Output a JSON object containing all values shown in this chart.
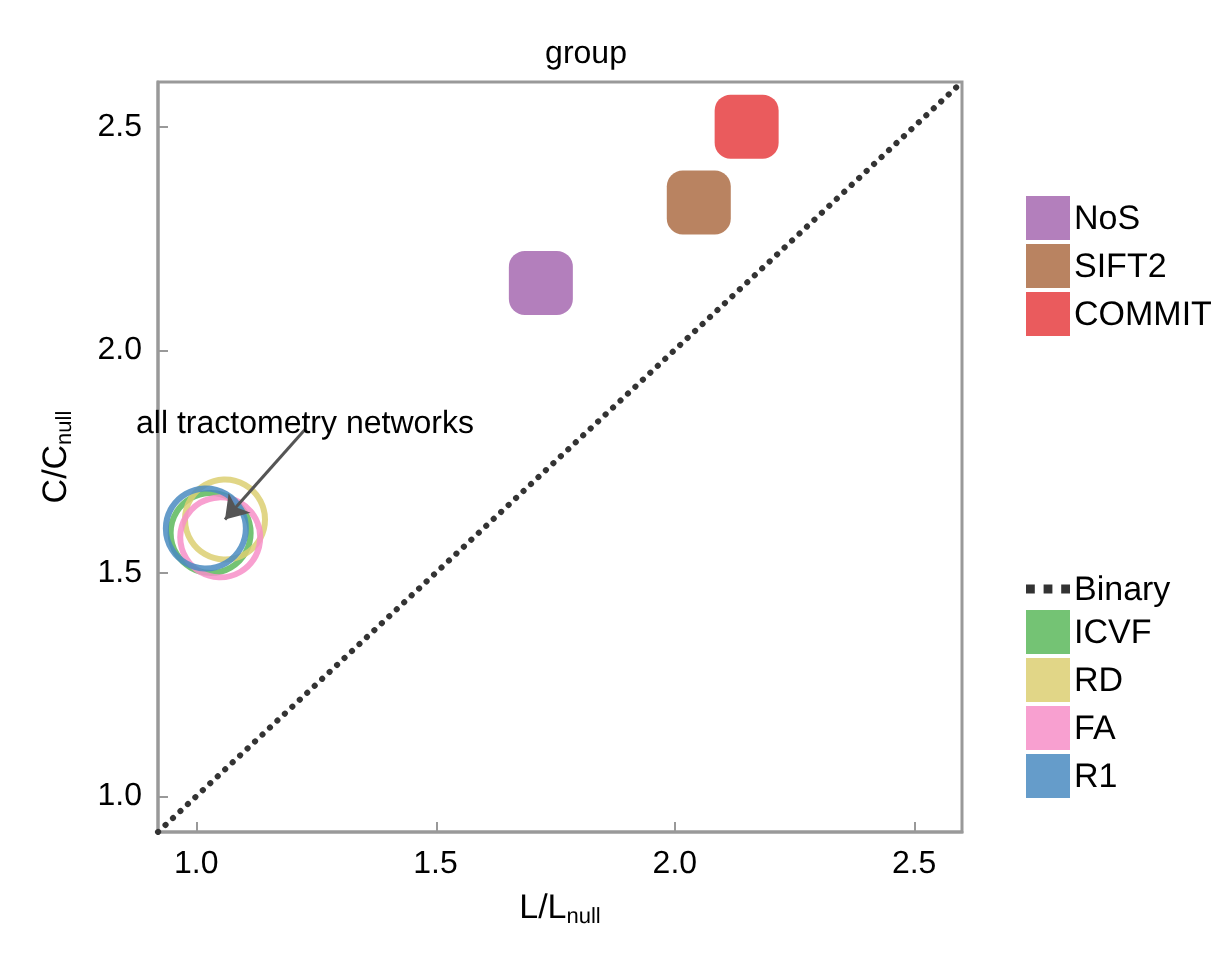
{
  "chart_data": {
    "type": "scatter",
    "title": "group",
    "xlabel": "L/L$_{null}$",
    "ylabel": "C/C$_{null}$",
    "xlim": [
      0.92,
      2.6
    ],
    "ylim": [
      0.92,
      2.6
    ],
    "xticks": [
      {
        "value": 1,
        "label": "1.0"
      },
      1.5,
      {
        "value": 2,
        "label": "2.0"
      },
      2.5
    ],
    "yticks": [
      {
        "value": 1,
        "label": "1.0"
      },
      1.5,
      {
        "value": 2,
        "label": "2.0"
      },
      2.5
    ],
    "grid": false,
    "legend": "right",
    "annotations": [
      {
        "text": "all tractometry networks",
        "x": 1.06,
        "y": 1.62
      }
    ],
    "series": [
      {
        "name": "NoS",
        "color": "#a05fab",
        "marker": "square",
        "x": [
          1.72
        ],
        "values": [
          2.15
        ]
      },
      {
        "name": "SIFT2",
        "color": "#a8643a",
        "marker": "square",
        "x": [
          2.05
        ],
        "values": [
          2.33
        ]
      },
      {
        "name": "COMMIT",
        "color": "#e53234",
        "marker": "square",
        "x": [
          2.15
        ],
        "values": [
          2.5
        ]
      },
      {
        "name": "Binary",
        "type": "line",
        "color": "#333333",
        "line_style": "dotted",
        "marker": "none",
        "x": [
          0.92,
          2.6
        ],
        "values": [
          0.92,
          2.6
        ]
      },
      {
        "name": "ICVF",
        "color": "#5cb85c",
        "marker": "circle",
        "x": [
          1.03
        ],
        "values": [
          1.59
        ]
      },
      {
        "name": "RD",
        "color": "#dccf72",
        "marker": "circle",
        "x": [
          1.06
        ],
        "values": [
          1.62
        ]
      },
      {
        "name": "FA",
        "color": "#f78fc8",
        "marker": "circle",
        "x": [
          1.05
        ],
        "values": [
          1.58
        ]
      },
      {
        "name": "R1",
        "color": "#4a8bc1",
        "marker": "circle",
        "x": [
          1.02
        ],
        "values": [
          1.6
        ]
      }
    ]
  }
}
